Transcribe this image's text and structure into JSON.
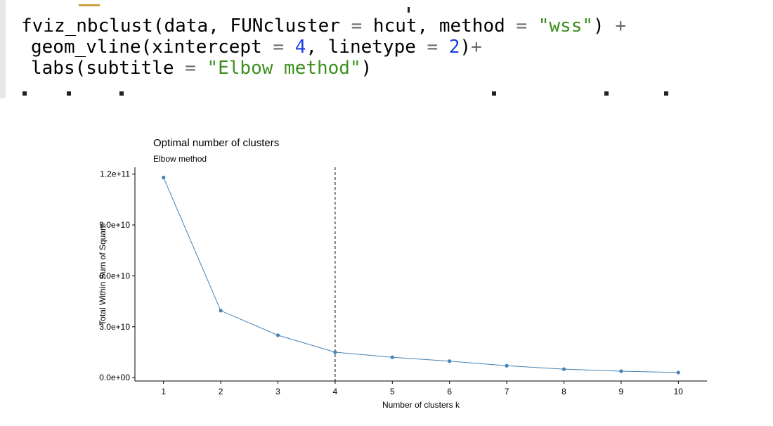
{
  "code": {
    "line1": [
      {
        "t": "fviz_nbclust(data, FUNcluster ",
        "c": "plain"
      },
      {
        "t": "=",
        "c": "op"
      },
      {
        "t": " hcut, method ",
        "c": "plain"
      },
      {
        "t": "=",
        "c": "op"
      },
      {
        "t": " ",
        "c": "plain"
      },
      {
        "t": "\"wss\"",
        "c": "str"
      },
      {
        "t": ") ",
        "c": "plain"
      },
      {
        "t": "+",
        "c": "op"
      }
    ],
    "line2": [
      {
        "t": "geom_vline(xintercept ",
        "c": "plain"
      },
      {
        "t": "=",
        "c": "op"
      },
      {
        "t": " ",
        "c": "plain"
      },
      {
        "t": "4",
        "c": "num"
      },
      {
        "t": ", linetype ",
        "c": "plain"
      },
      {
        "t": "=",
        "c": "op"
      },
      {
        "t": " ",
        "c": "plain"
      },
      {
        "t": "2",
        "c": "num"
      },
      {
        "t": ")",
        "c": "plain"
      },
      {
        "t": "+",
        "c": "op"
      }
    ],
    "line3": [
      {
        "t": "labs(subtitle ",
        "c": "plain"
      },
      {
        "t": "=",
        "c": "op"
      },
      {
        "t": " ",
        "c": "plain"
      },
      {
        "t": "\"Elbow method\"",
        "c": "str"
      },
      {
        "t": ")",
        "c": "plain"
      }
    ],
    "colors": {
      "string": "#3d8f1f",
      "number": "#1c3fe0",
      "operator": "#686868"
    }
  },
  "chart_data": {
    "type": "line",
    "title": "Optimal number of clusters",
    "subtitle": "Elbow method",
    "xlabel": "Number of clusters k",
    "ylabel": "Total Within Sum of Square",
    "x": [
      1,
      2,
      3,
      4,
      5,
      6,
      7,
      8,
      9,
      10
    ],
    "series": [
      {
        "values": [
          118000000000.0,
          39500000000.0,
          25000000000.0,
          15000000000.0,
          12000000000.0,
          9700000000.0,
          7000000000.0,
          5000000000.0,
          3800000000.0,
          3000000000.0
        ]
      }
    ],
    "y_ticks": [
      0,
      30000000000.0,
      60000000000.0,
      90000000000.0,
      120000000000.0
    ],
    "y_tick_labels": [
      "0.0e+00",
      "3.0e+10",
      "6.0e+10",
      "9.0e+10",
      "1.2e+11"
    ],
    "x_ticks": [
      1,
      2,
      3,
      4,
      5,
      6,
      7,
      8,
      9,
      10
    ],
    "x_tick_labels": [
      "1",
      "2",
      "3",
      "4",
      "5",
      "6",
      "7",
      "8",
      "9",
      "10"
    ],
    "xlim": [
      0.5,
      10.5
    ],
    "ylim": [
      -2000000000.0,
      124000000000.0
    ],
    "vline": {
      "x": 4,
      "linetype": "dashed"
    },
    "grid": false,
    "line_color": "#4682b4",
    "point_color": "#4682b4"
  }
}
